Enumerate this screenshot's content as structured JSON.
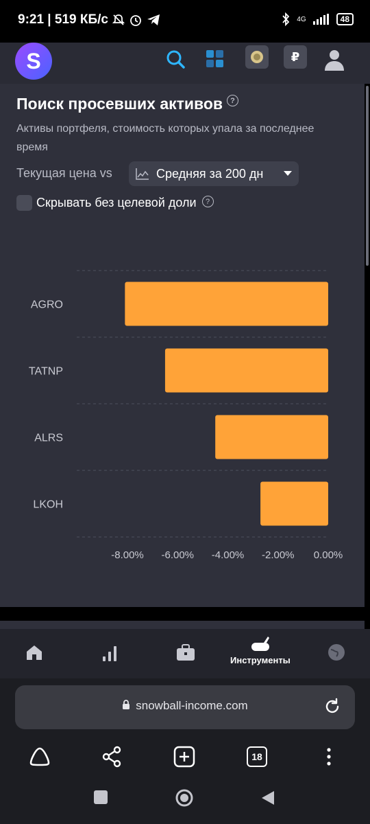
{
  "status": {
    "time_speed": "9:21 | 519 КБ/с",
    "network": "4G",
    "battery": "48"
  },
  "header": {
    "logo_letter": "S",
    "icons": [
      "search-icon",
      "grid-icon",
      "emblem-icon",
      "ruble-icon",
      "profile-icon"
    ],
    "ruble_symbol": "₽"
  },
  "card": {
    "title": "Поиск просевших активов",
    "help_symbol": "?",
    "subtitle": "Активы портфеля, стоимость которых упала за последнее время",
    "compare_label": "Текущая цена vs",
    "select_value": "Средняя за 200 дн",
    "checkbox_label": "Скрывать без целевой доли"
  },
  "chart_data": {
    "type": "bar",
    "orientation": "horizontal",
    "categories": [
      "AGRO",
      "TATNP",
      "ALRS",
      "LKOH"
    ],
    "values": [
      -8.1,
      -6.5,
      -4.5,
      -2.7
    ],
    "x_ticks": [
      "-8.00%",
      "-6.00%",
      "-4.00%",
      "-2.00%",
      "0.00%"
    ],
    "xlim": [
      -8.0,
      0.0
    ],
    "bar_color": "#ffa338",
    "grid": true
  },
  "bottom_nav": {
    "items": [
      {
        "icon": "home-icon",
        "label": ""
      },
      {
        "icon": "bar-chart-icon",
        "label": ""
      },
      {
        "icon": "briefcase-icon",
        "label": ""
      },
      {
        "icon": "tools-icon",
        "label": "Инструменты"
      },
      {
        "icon": "globe-icon",
        "label": ""
      }
    ]
  },
  "browser": {
    "url": "snowball-income.com",
    "tab_count": "18"
  }
}
